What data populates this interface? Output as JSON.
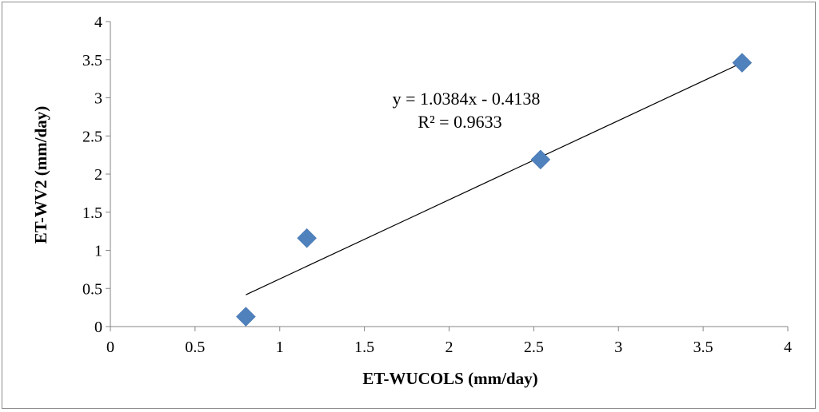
{
  "chart_data": {
    "type": "scatter",
    "title": "",
    "xlabel": "ET-WUCOLS (mm/day)",
    "ylabel": "ET-WV2 (mm/day)",
    "xlim": [
      0,
      4
    ],
    "ylim": [
      0,
      4
    ],
    "x_ticks": [
      "0",
      "0.5",
      "1",
      "1.5",
      "2",
      "2.5",
      "3",
      "3.5",
      "4"
    ],
    "y_ticks": [
      "0",
      "0.5",
      "1",
      "1.5",
      "2",
      "2.5",
      "3",
      "3.5",
      "4"
    ],
    "grid": false,
    "legend": "none",
    "series": [
      {
        "color": "#4F81BD",
        "marker": "diamond",
        "points": [
          {
            "x": 0.8,
            "y": 0.13
          },
          {
            "x": 1.16,
            "y": 1.16
          },
          {
            "x": 2.54,
            "y": 2.19
          },
          {
            "x": 3.73,
            "y": 3.46
          }
        ]
      }
    ],
    "trendline": {
      "type": "linear",
      "slope": 1.0384,
      "intercept": -0.4138,
      "x_range": [
        0.8,
        3.73
      ],
      "color": "#000000",
      "equation": "y = 1.0384x - 0.4138",
      "r_squared": "R² = 0.9633"
    }
  }
}
